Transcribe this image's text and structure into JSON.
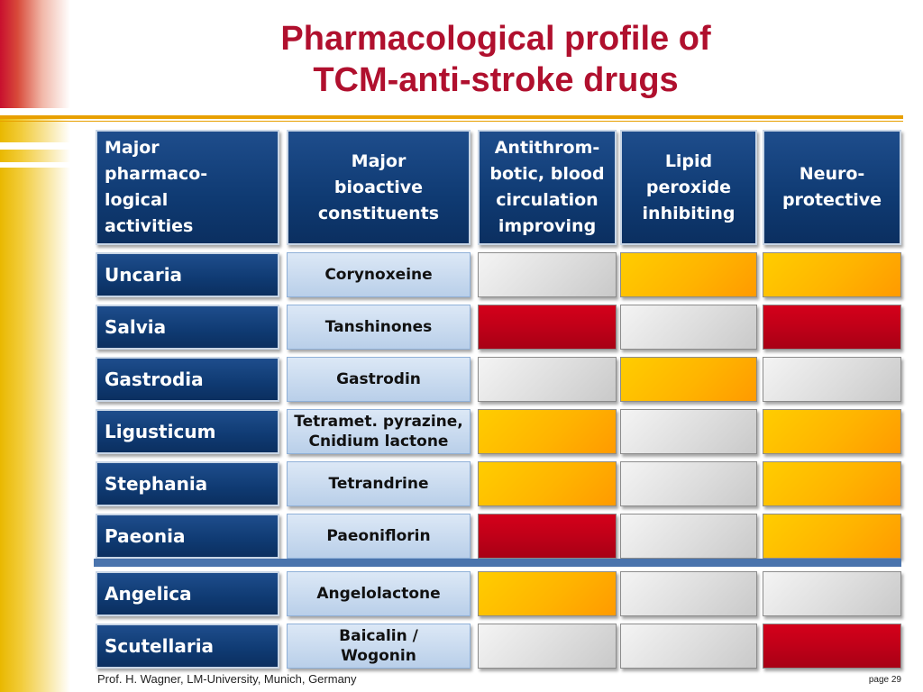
{
  "title": {
    "line1": "Pharmacological profile of",
    "line2": "TCM-anti-stroke drugs"
  },
  "headers": {
    "col1": [
      "Major",
      "pharmaco-",
      "logical",
      "activities"
    ],
    "col2": [
      "Major",
      "bioactive",
      "constituents"
    ],
    "col3": [
      "Antithrom-",
      "botic, blood",
      "circulation",
      "improving"
    ],
    "col4": [
      "Lipid",
      "peroxide",
      "inhibiting"
    ],
    "col5": [
      "Neuro-",
      "protective"
    ]
  },
  "rows": [
    {
      "name": "Uncaria",
      "constituent": [
        "Corynoxeine"
      ],
      "levels": [
        "grey",
        "orange",
        "orange"
      ]
    },
    {
      "name": "Salvia",
      "constituent": [
        "Tanshinones"
      ],
      "levels": [
        "red",
        "grey",
        "red"
      ]
    },
    {
      "name": "Gastrodia",
      "constituent": [
        "Gastrodin"
      ],
      "levels": [
        "grey",
        "orange",
        "grey"
      ]
    },
    {
      "name": "Ligusticum",
      "constituent": [
        "Tetramet. pyrazine,",
        "Cnidium lactone"
      ],
      "levels": [
        "orange",
        "grey",
        "orange"
      ]
    },
    {
      "name": "Stephania",
      "constituent": [
        "Tetrandrine"
      ],
      "levels": [
        "orange",
        "grey",
        "orange"
      ]
    },
    {
      "name": "Paeonia",
      "constituent": [
        "Paeoniflorin"
      ],
      "levels": [
        "red",
        "grey",
        "orange"
      ]
    },
    {
      "name": "Angelica",
      "constituent": [
        "Angelolactone"
      ],
      "levels": [
        "orange",
        "grey",
        "grey"
      ]
    },
    {
      "name": "Scutellaria",
      "constituent": [
        "Baicalin /",
        "Wogonin"
      ],
      "levels": [
        "grey",
        "grey",
        "red"
      ]
    }
  ],
  "colors": {
    "red": "#c00018",
    "orange": "#ffb400",
    "grey": "#dddddd",
    "header": "#0f3a72",
    "title": "#b0102e"
  },
  "footer": {
    "left": "Prof. H. Wagner, LM-University, Munich, Germany",
    "right": "page 29"
  }
}
